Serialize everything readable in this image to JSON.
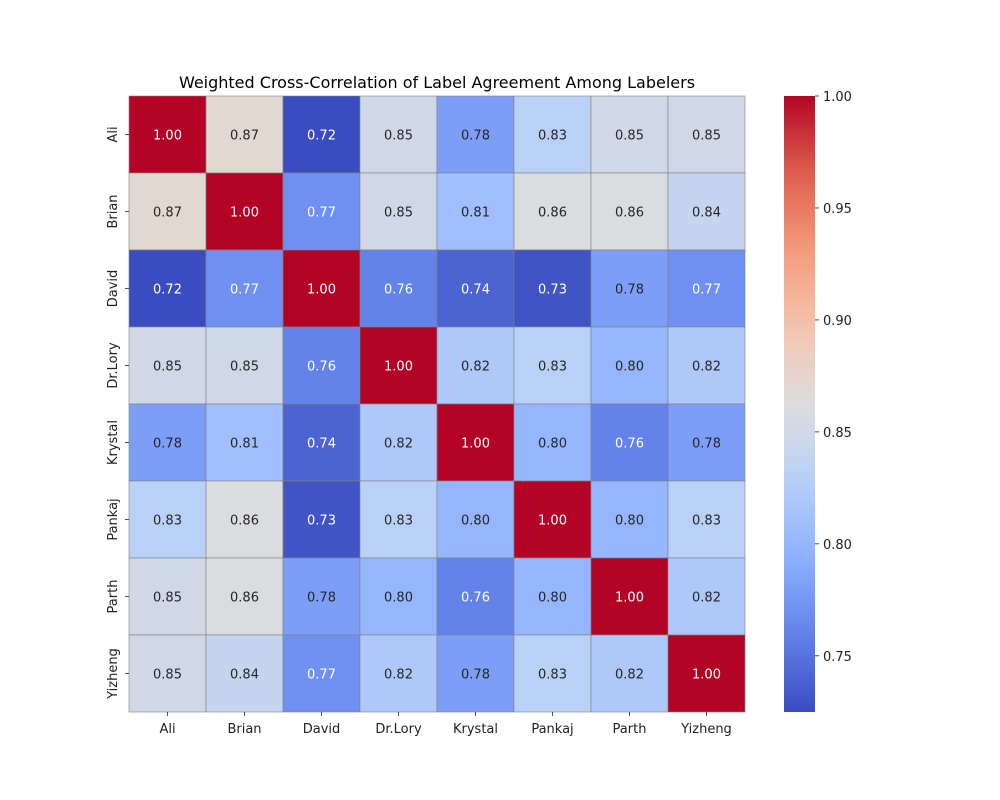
{
  "chart_data": {
    "type": "heatmap",
    "title": "Weighted Cross-Correlation of Label Agreement Among Labelers",
    "xlabel": "",
    "ylabel": "",
    "x_categories": [
      "Ali",
      "Brian",
      "David",
      "Dr.Lory",
      "Krystal",
      "Pankaj",
      "Parth",
      "Yizheng"
    ],
    "y_categories": [
      "Ali",
      "Brian",
      "David",
      "Dr.Lory",
      "Krystal",
      "Pankaj",
      "Parth",
      "Yizheng"
    ],
    "values": [
      [
        1.0,
        0.87,
        0.72,
        0.85,
        0.78,
        0.83,
        0.85,
        0.85
      ],
      [
        0.87,
        1.0,
        0.77,
        0.85,
        0.81,
        0.86,
        0.86,
        0.84
      ],
      [
        0.72,
        0.77,
        1.0,
        0.76,
        0.74,
        0.73,
        0.78,
        0.77
      ],
      [
        0.85,
        0.85,
        0.76,
        1.0,
        0.82,
        0.83,
        0.8,
        0.82
      ],
      [
        0.78,
        0.81,
        0.74,
        0.82,
        1.0,
        0.8,
        0.76,
        0.78
      ],
      [
        0.83,
        0.86,
        0.73,
        0.83,
        0.8,
        1.0,
        0.8,
        0.83
      ],
      [
        0.85,
        0.86,
        0.78,
        0.8,
        0.76,
        0.8,
        1.0,
        0.82
      ],
      [
        0.85,
        0.84,
        0.77,
        0.82,
        0.78,
        0.83,
        0.82,
        1.0
      ]
    ],
    "value_format": "0.00",
    "colormap": "coolwarm",
    "color_range": [
      0.7249,
      1.0
    ],
    "colorbar_ticks": [
      "0.75",
      "0.80",
      "0.85",
      "0.90",
      "0.95",
      "1.00"
    ],
    "grid": true,
    "grid_color": "#808080"
  }
}
